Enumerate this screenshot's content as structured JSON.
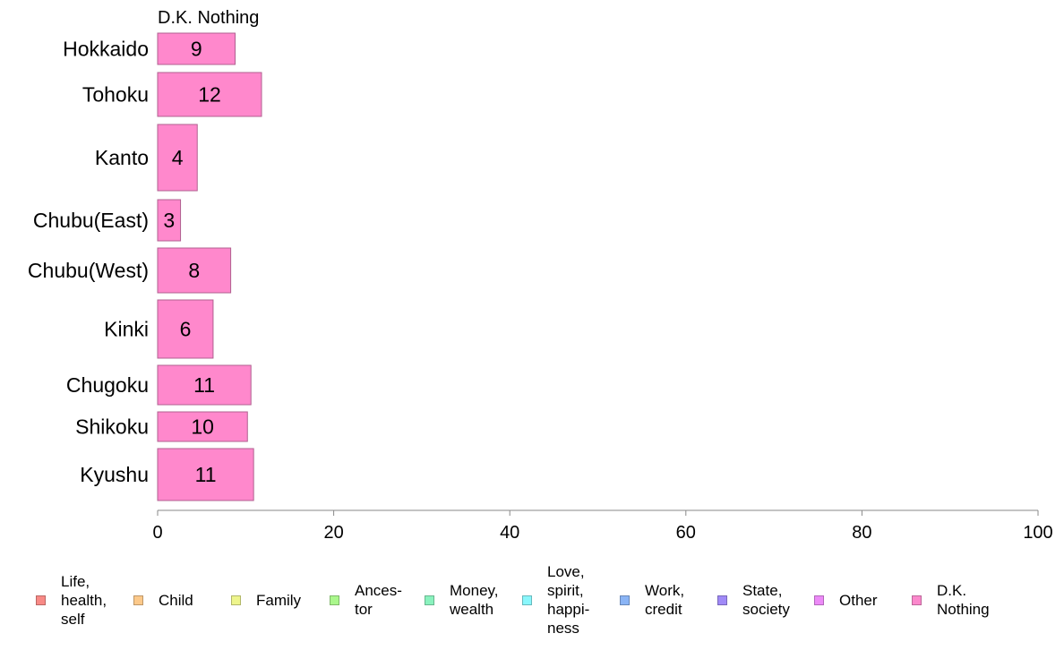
{
  "chart_data": {
    "type": "bar",
    "orientation": "horizontal",
    "title": "D.K. Nothing",
    "categories": [
      "Hokkaido",
      "Tohoku",
      "Kanto",
      "Chubu(East)",
      "Chubu(West)",
      "Kinki",
      "Chugoku",
      "Shikoku",
      "Kyushu"
    ],
    "values": [
      8.8,
      11.8,
      4.5,
      2.6,
      8.3,
      6.3,
      10.6,
      10.2,
      10.9
    ],
    "value_labels": [
      "9",
      "12",
      "4",
      "3",
      "8",
      "6",
      "11",
      "10",
      "11"
    ],
    "series": [
      {
        "name": "D.K. Nothing",
        "color": "#ff88cc"
      }
    ],
    "xlim": [
      0,
      100
    ],
    "xticks": [
      "0",
      "20",
      "40",
      "60",
      "80",
      "100"
    ],
    "xlabel": "",
    "ylabel": "",
    "grid": false,
    "legend_position": "bottom",
    "legend": [
      {
        "label": "Life,\nhealth,\nself",
        "color": "#f88a86"
      },
      {
        "label": "Child",
        "color": "#fcc98a"
      },
      {
        "label": "Family",
        "color": "#eef58c"
      },
      {
        "label": "Ances-\ntor",
        "color": "#aaf78c"
      },
      {
        "label": "Money,\nwealth",
        "color": "#8af2be"
      },
      {
        "label": "Love,\nspirit,\nhappi-\nness",
        "color": "#8af7fc"
      },
      {
        "label": "Work,\ncredit",
        "color": "#8ab4f5"
      },
      {
        "label": "State,\nsociety",
        "color": "#a08af7"
      },
      {
        "label": "Other",
        "color": "#ec8af7"
      },
      {
        "label": "D.K.\nNothing",
        "color": "#fb88cc"
      }
    ]
  }
}
